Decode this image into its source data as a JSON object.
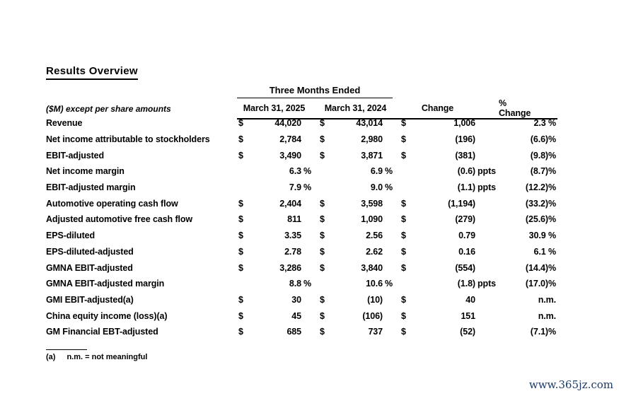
{
  "page": {
    "title": "Results Overview",
    "watermark": "www.365jz.com",
    "watermark_color": "#1b3a67",
    "text_color": "#000000",
    "background_color": "#ffffff"
  },
  "table": {
    "group_header": "Three Months Ended",
    "row_header_note": "($M) except per share amounts",
    "col_headers": [
      "March 31, 2025",
      "March 31, 2024",
      "Change",
      "% Change"
    ],
    "rows": [
      {
        "label": "Revenue",
        "cur25": "$",
        "v25": "44,020",
        "suf25": "",
        "cur24": "$",
        "v24": "43,014",
        "suf24": "",
        "curch": "$",
        "vch": "1,006",
        "sufch": "",
        "pct": "2.3 %"
      },
      {
        "label": "Net income attributable to stockholders",
        "cur25": "$",
        "v25": "2,784",
        "suf25": "",
        "cur24": "$",
        "v24": "2,980",
        "suf24": "",
        "curch": "$",
        "vch": "(196)",
        "sufch": "",
        "pct": "(6.6)%"
      },
      {
        "label": "EBIT-adjusted",
        "cur25": "$",
        "v25": "3,490",
        "suf25": "",
        "cur24": "$",
        "v24": "3,871",
        "suf24": "",
        "curch": "$",
        "vch": "(381)",
        "sufch": "",
        "pct": "(9.8)%"
      },
      {
        "label": "Net income margin",
        "cur25": "",
        "v25": "6.3",
        "suf25": "%",
        "cur24": "",
        "v24": "6.9",
        "suf24": "%",
        "curch": "",
        "vch": "(0.6)",
        "sufch": "ppts",
        "pct": "(8.7)%"
      },
      {
        "label": "EBIT-adjusted margin",
        "cur25": "",
        "v25": "7.9",
        "suf25": "%",
        "cur24": "",
        "v24": "9.0",
        "suf24": "%",
        "curch": "",
        "vch": "(1.1)",
        "sufch": "ppts",
        "pct": "(12.2)%"
      },
      {
        "label": "Automotive operating cash flow",
        "cur25": "$",
        "v25": "2,404",
        "suf25": "",
        "cur24": "$",
        "v24": "3,598",
        "suf24": "",
        "curch": "$",
        "vch": "(1,194)",
        "sufch": "",
        "pct": "(33.2)%"
      },
      {
        "label": "Adjusted automotive free cash flow",
        "cur25": "$",
        "v25": "811",
        "suf25": "",
        "cur24": "$",
        "v24": "1,090",
        "suf24": "",
        "curch": "$",
        "vch": "(279)",
        "sufch": "",
        "pct": "(25.6)%"
      },
      {
        "label": "EPS-diluted",
        "cur25": "$",
        "v25": "3.35",
        "suf25": "",
        "cur24": "$",
        "v24": "2.56",
        "suf24": "",
        "curch": "$",
        "vch": "0.79",
        "sufch": "",
        "pct": "30.9 %"
      },
      {
        "label": "EPS-diluted-adjusted",
        "cur25": "$",
        "v25": "2.78",
        "suf25": "",
        "cur24": "$",
        "v24": "2.62",
        "suf24": "",
        "curch": "$",
        "vch": "0.16",
        "sufch": "",
        "pct": "6.1 %"
      },
      {
        "label": "GMNA EBIT-adjusted",
        "cur25": "$",
        "v25": "3,286",
        "suf25": "",
        "cur24": "$",
        "v24": "3,840",
        "suf24": "",
        "curch": "$",
        "vch": "(554)",
        "sufch": "",
        "pct": "(14.4)%"
      },
      {
        "label": "GMNA EBIT-adjusted margin",
        "cur25": "",
        "v25": "8.8",
        "suf25": "%",
        "cur24": "",
        "v24": "10.6",
        "suf24": "%",
        "curch": "",
        "vch": "(1.8)",
        "sufch": "ppts",
        "pct": "(17.0)%"
      },
      {
        "label": "GMI EBIT-adjusted(a)",
        "cur25": "$",
        "v25": "30",
        "suf25": "",
        "cur24": "$",
        "v24": "(10)",
        "suf24": "",
        "curch": "$",
        "vch": "40",
        "sufch": "",
        "pct": "n.m."
      },
      {
        "label": "China equity income (loss)(a)",
        "cur25": "$",
        "v25": "45",
        "suf25": "",
        "cur24": "$",
        "v24": "(106)",
        "suf24": "",
        "curch": "$",
        "vch": "151",
        "sufch": "",
        "pct": "n.m."
      },
      {
        "label": "GM Financial EBT-adjusted",
        "cur25": "$",
        "v25": "685",
        "suf25": "",
        "cur24": "$",
        "v24": "737",
        "suf24": "",
        "curch": "$",
        "vch": "(52)",
        "sufch": "",
        "pct": "(7.1)%"
      }
    ]
  },
  "footnote": {
    "marker": "(a)",
    "text": "n.m. = not meaningful"
  }
}
